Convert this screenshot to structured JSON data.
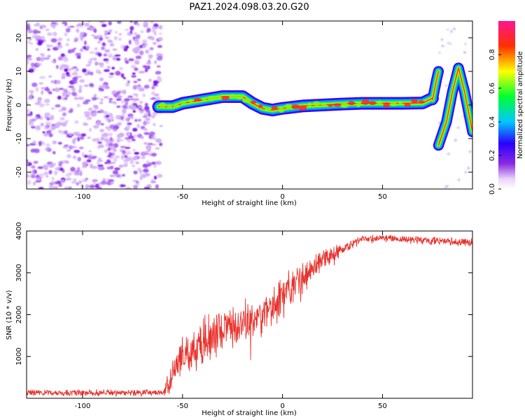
{
  "title": "PAZ1.2024.098.03.20.G20",
  "chart_data": [
    {
      "type": "heatmap",
      "xlabel": "Height of straight line (km)",
      "ylabel": "Frequency (Hz)",
      "xlim": [
        -128,
        95
      ],
      "ylim": [
        -25,
        25
      ],
      "xticks": [
        -100,
        -50,
        0,
        50
      ],
      "yticks": [
        -20,
        -10,
        0,
        10,
        20
      ],
      "colorbar": {
        "label": "Normalized spectral amplitude",
        "range": [
          0,
          1
        ],
        "ticks": [
          "0.0",
          "0.2",
          "0.4",
          "0.6",
          "0.8"
        ]
      },
      "noise_region_x": [
        -128,
        -62
      ],
      "ridge": {
        "x": [
          -62,
          -55,
          -50,
          -45,
          -40,
          -35,
          -30,
          -25,
          -20,
          -15,
          -10,
          -5,
          0,
          10,
          20,
          30,
          40,
          50,
          60,
          70,
          75
        ],
        "y": [
          -0.5,
          -0.5,
          0.5,
          1.0,
          1.5,
          2.0,
          2.5,
          2.5,
          2.5,
          0.5,
          -1.0,
          -1.5,
          -1.0,
          -0.3,
          0.0,
          0.3,
          0.5,
          0.5,
          0.5,
          0.6,
          2.0
        ]
      },
      "right_branches": [
        {
          "x": [
            75,
            77,
            78
          ],
          "y": [
            1.5,
            7.5,
            10.0
          ]
        },
        {
          "x": [
            78,
            82,
            85,
            88
          ],
          "y": [
            -12.0,
            -5.0,
            4.0,
            11.0
          ]
        },
        {
          "x": [
            88,
            91,
            95
          ],
          "y": [
            11.0,
            4.0,
            -8.0
          ]
        }
      ]
    },
    {
      "type": "line",
      "xlabel": "Height of straight line (km)",
      "ylabel": "SNR (10 * v/v)",
      "xlim": [
        -128,
        95
      ],
      "ylim": [
        0,
        4000
      ],
      "xticks": [
        -100,
        -50,
        0,
        50
      ],
      "yticks": [
        1000,
        2000,
        3000,
        4000
      ],
      "color": "#e8312b",
      "envelope": {
        "x": [
          -128,
          -60,
          -57,
          -54,
          -50,
          -40,
          -30,
          -20,
          -10,
          0,
          10,
          20,
          30,
          40,
          50,
          60,
          70,
          80,
          90,
          95
        ],
        "y": [
          130,
          140,
          300,
          700,
          1000,
          1350,
          1650,
          1800,
          2000,
          2400,
          2900,
          3300,
          3600,
          3800,
          3830,
          3800,
          3780,
          3760,
          3740,
          3720
        ]
      },
      "noise_amplitude": {
        "x": [
          -128,
          -60,
          -56,
          -40,
          0,
          30,
          40,
          95
        ],
        "y": [
          90,
          100,
          500,
          600,
          550,
          200,
          110,
          110
        ]
      }
    }
  ]
}
